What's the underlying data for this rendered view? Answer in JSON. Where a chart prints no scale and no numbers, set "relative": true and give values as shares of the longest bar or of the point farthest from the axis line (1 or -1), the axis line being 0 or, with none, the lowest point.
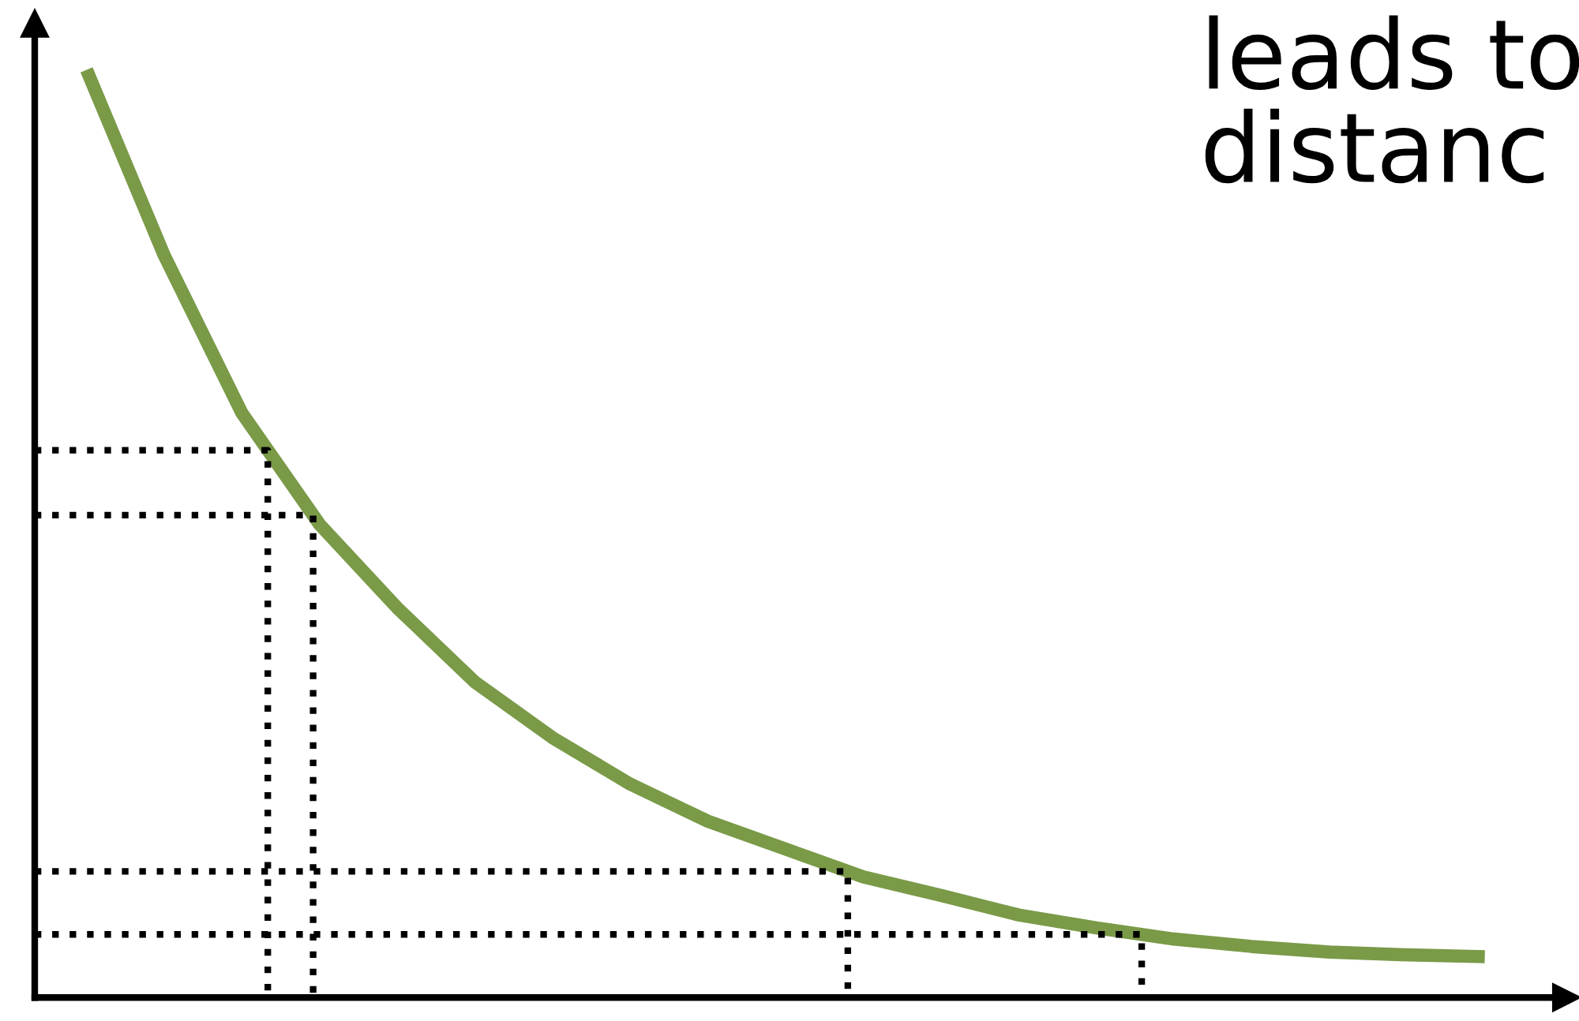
{
  "chart_data": {
    "type": "line",
    "relative": true,
    "color": "#7a9a48",
    "categories": [
      null,
      null,
      null,
      null,
      null,
      null,
      null,
      null,
      null,
      null,
      null,
      null,
      null,
      null,
      null,
      null,
      null,
      null,
      null
    ],
    "values": [
      1,
      0.8,
      0.63,
      0.51,
      0.42,
      0.34,
      0.28,
      0.23,
      0.19,
      0.16,
      0.13,
      0.11,
      0.089,
      0.075,
      0.063,
      0.055,
      0.049,
      0.046,
      0.044
    ],
    "ref_lines": [
      {
        "axis": "y",
        "value": 0.59,
        "line_style": "dotted",
        "color": "#000000"
      },
      {
        "axis": "y",
        "value": 0.52,
        "line_style": "dotted",
        "color": "#000000"
      },
      {
        "axis": "y",
        "value": 0.136,
        "line_style": "dotted",
        "color": "#000000"
      },
      {
        "axis": "y",
        "value": 0.068,
        "line_style": "dotted",
        "color": "#000000"
      }
    ],
    "annotations": [
      "leads to\ndistanc"
    ],
    "grid": false,
    "legend": false,
    "marker": "none",
    "line_style": "solid"
  }
}
